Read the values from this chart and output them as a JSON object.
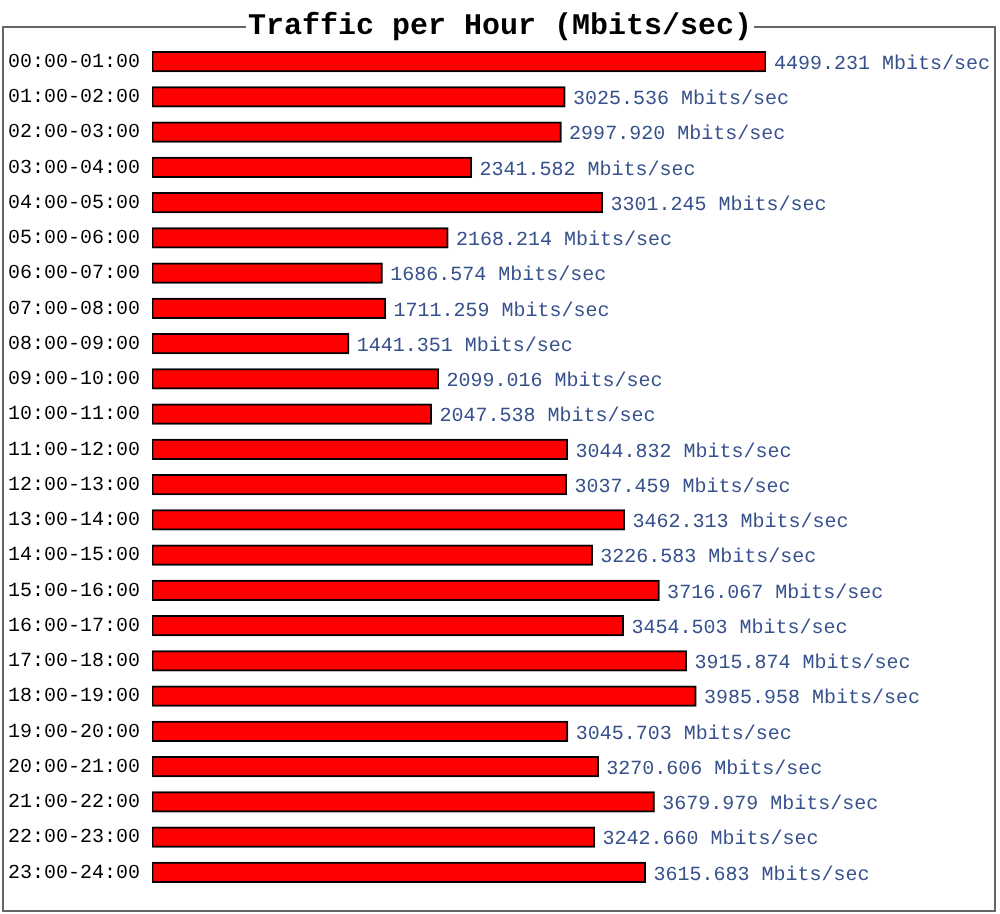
{
  "chart_data": {
    "type": "bar",
    "title": "Traffic per Hour (Mbits/sec)",
    "orientation": "horizontal",
    "tick_labels": "y",
    "color": "#ff0000",
    "categories": [
      "00:00-01:00",
      "01:00-02:00",
      "02:00-03:00",
      "03:00-04:00",
      "04:00-05:00",
      "05:00-06:00",
      "06:00-07:00",
      "07:00-08:00",
      "08:00-09:00",
      "09:00-10:00",
      "10:00-11:00",
      "11:00-12:00",
      "12:00-13:00",
      "13:00-14:00",
      "14:00-15:00",
      "15:00-16:00",
      "16:00-17:00",
      "17:00-18:00",
      "18:00-19:00",
      "19:00-20:00",
      "20:00-21:00",
      "21:00-22:00",
      "22:00-23:00",
      "23:00-24:00"
    ],
    "values": [
      4499.231,
      3025.536,
      2997.92,
      2341.582,
      3301.245,
      2168.214,
      1686.574,
      1711.259,
      1441.351,
      2099.016,
      2047.538,
      3044.832,
      3037.459,
      3462.313,
      3226.583,
      3716.067,
      3454.503,
      3915.874,
      3985.958,
      3045.703,
      3270.606,
      3679.979,
      3242.66,
      3615.683
    ],
    "value_labels": [
      "4499.231 Mbits/sec",
      "3025.536 Mbits/sec",
      "2997.920 Mbits/sec",
      "2341.582 Mbits/sec",
      "3301.245 Mbits/sec",
      "2168.214 Mbits/sec",
      "1686.574 Mbits/sec",
      "1711.259 Mbits/sec",
      "1441.351 Mbits/sec",
      "2099.016 Mbits/sec",
      "2047.538 Mbits/sec",
      "3044.832 Mbits/sec",
      "3037.459 Mbits/sec",
      "3462.313 Mbits/sec",
      "3226.583 Mbits/sec",
      "3716.067 Mbits/sec",
      "3454.503 Mbits/sec",
      "3915.874 Mbits/sec",
      "3985.958 Mbits/sec",
      "3045.703 Mbits/sec",
      "3270.606 Mbits/sec",
      "3679.979 Mbits/sec",
      "3242.660 Mbits/sec",
      "3615.683 Mbits/sec"
    ]
  }
}
